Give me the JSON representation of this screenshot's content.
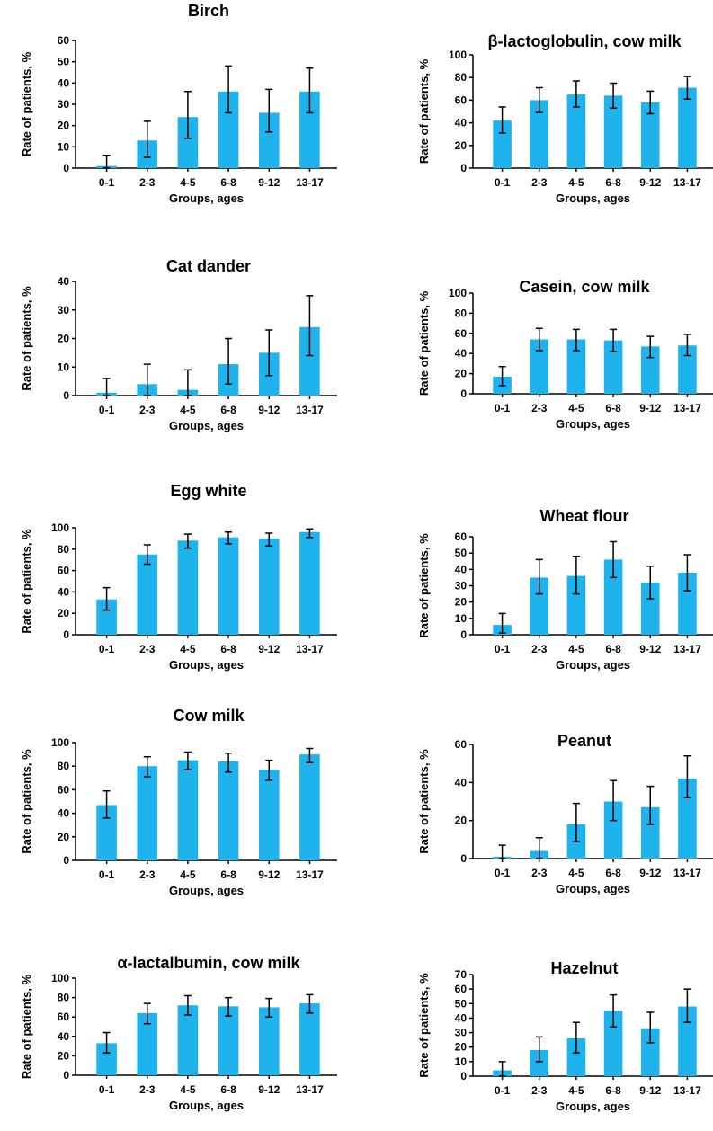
{
  "colors": {
    "bar": "#1fb3ee",
    "axis": "#000000"
  },
  "chart_data": [
    {
      "type": "bar",
      "title": "Birch",
      "xlabel": "Groups, ages",
      "ylabel": "Rate of patients, %",
      "categories": [
        "0-1",
        "2-3",
        "4-5",
        "6-8",
        "9-12",
        "13-17"
      ],
      "values": [
        1,
        13,
        24,
        36,
        26,
        36
      ],
      "error": [
        [
          0,
          6
        ],
        [
          5,
          22
        ],
        [
          14,
          36
        ],
        [
          26,
          48
        ],
        [
          17,
          37
        ],
        [
          26,
          47
        ]
      ],
      "ylim": [
        0,
        60
      ],
      "yticks": [
        0,
        10,
        20,
        30,
        40,
        50,
        60
      ],
      "grid": false
    },
    {
      "type": "bar",
      "title": "β-lactoglobulin, cow milk",
      "xlabel": "Groups, ages",
      "ylabel": "Rate of patients, %",
      "categories": [
        "0-1",
        "2-3",
        "4-5",
        "6-8",
        "9-12",
        "13-17"
      ],
      "values": [
        42,
        60,
        65,
        64,
        58,
        71
      ],
      "error": [
        [
          31,
          54
        ],
        [
          49,
          71
        ],
        [
          54,
          77
        ],
        [
          53,
          75
        ],
        [
          48,
          68
        ],
        [
          61,
          81
        ]
      ],
      "ylim": [
        0,
        100
      ],
      "yticks": [
        0,
        20,
        40,
        60,
        80,
        100
      ],
      "grid": false
    },
    {
      "type": "bar",
      "title": "Cat dander",
      "xlabel": "Groups, ages",
      "ylabel": "Rate of patients, %",
      "categories": [
        "0-1",
        "2-3",
        "4-5",
        "6-8",
        "9-12",
        "13-17"
      ],
      "values": [
        1,
        4,
        2,
        11,
        15,
        24
      ],
      "error": [
        [
          0,
          6
        ],
        [
          0,
          11
        ],
        [
          0,
          9
        ],
        [
          4,
          20
        ],
        [
          7,
          23
        ],
        [
          14,
          35
        ]
      ],
      "ylim": [
        0,
        40
      ],
      "yticks": [
        0,
        10,
        20,
        30,
        40
      ],
      "grid": false
    },
    {
      "type": "bar",
      "title": "Casein, cow milk",
      "xlabel": "Groups, ages",
      "ylabel": "Rate of patients, %",
      "categories": [
        "0-1",
        "2-3",
        "4-5",
        "6-8",
        "9-12",
        "13-17"
      ],
      "values": [
        17,
        54,
        54,
        53,
        47,
        48
      ],
      "error": [
        [
          8,
          27
        ],
        [
          43,
          65
        ],
        [
          43,
          64
        ],
        [
          42,
          64
        ],
        [
          36,
          57
        ],
        [
          38,
          59
        ]
      ],
      "ylim": [
        0,
        100
      ],
      "yticks": [
        0,
        20,
        40,
        60,
        80,
        100
      ],
      "grid": false
    },
    {
      "type": "bar",
      "title": "Egg white",
      "xlabel": "Groups, ages",
      "ylabel": "Rate of patients, %",
      "categories": [
        "0-1",
        "2-3",
        "4-5",
        "6-8",
        "9-12",
        "13-17"
      ],
      "values": [
        33,
        75,
        88,
        91,
        90,
        96
      ],
      "error": [
        [
          23,
          44
        ],
        [
          66,
          84
        ],
        [
          81,
          94
        ],
        [
          85,
          96
        ],
        [
          83,
          95
        ],
        [
          91,
          99
        ]
      ],
      "ylim": [
        0,
        100
      ],
      "yticks": [
        0,
        20,
        40,
        60,
        80,
        100
      ],
      "grid": false
    },
    {
      "type": "bar",
      "title": "Wheat flour",
      "xlabel": "Groups, ages",
      "ylabel": "Rate of patients, %",
      "categories": [
        "0-1",
        "2-3",
        "4-5",
        "6-8",
        "9-12",
        "13-17"
      ],
      "values": [
        6,
        35,
        36,
        46,
        32,
        38
      ],
      "error": [
        [
          1,
          13
        ],
        [
          25,
          46
        ],
        [
          25,
          48
        ],
        [
          35,
          57
        ],
        [
          22,
          42
        ],
        [
          27,
          49
        ]
      ],
      "ylim": [
        0,
        60
      ],
      "yticks": [
        0,
        10,
        20,
        30,
        40,
        50,
        60
      ],
      "grid": false
    },
    {
      "type": "bar",
      "title": "Cow milk",
      "xlabel": "Groups, ages",
      "ylabel": "Rate of patients, %",
      "categories": [
        "0-1",
        "2-3",
        "4-5",
        "6-8",
        "9-12",
        "13-17"
      ],
      "values": [
        47,
        80,
        85,
        84,
        77,
        90
      ],
      "error": [
        [
          36,
          59
        ],
        [
          71,
          88
        ],
        [
          77,
          92
        ],
        [
          75,
          91
        ],
        [
          68,
          85
        ],
        [
          83,
          95
        ]
      ],
      "ylim": [
        0,
        100
      ],
      "yticks": [
        0,
        20,
        40,
        60,
        80,
        100
      ],
      "grid": false
    },
    {
      "type": "bar",
      "title": "Peanut",
      "xlabel": "Groups, ages",
      "ylabel": "Rate of patients, %",
      "categories": [
        "0-1",
        "2-3",
        "4-5",
        "6-8",
        "9-12",
        "13-17"
      ],
      "values": [
        1,
        4,
        18,
        30,
        27,
        42
      ],
      "error": [
        [
          0,
          7
        ],
        [
          0,
          11
        ],
        [
          9,
          29
        ],
        [
          20,
          41
        ],
        [
          18,
          38
        ],
        [
          32,
          54
        ]
      ],
      "ylim": [
        0,
        60
      ],
      "yticks": [
        0,
        20,
        40,
        60
      ],
      "grid": false
    },
    {
      "type": "bar",
      "title": "α-lactalbumin, cow milk",
      "xlabel": "Groups, ages",
      "ylabel": "Rate of patients, %",
      "categories": [
        "0-1",
        "2-3",
        "4-5",
        "6-8",
        "9-12",
        "13-17"
      ],
      "values": [
        33,
        64,
        72,
        71,
        70,
        74
      ],
      "error": [
        [
          23,
          44
        ],
        [
          53,
          74
        ],
        [
          62,
          82
        ],
        [
          61,
          80
        ],
        [
          60,
          79
        ],
        [
          64,
          83
        ]
      ],
      "ylim": [
        0,
        100
      ],
      "yticks": [
        0,
        20,
        40,
        60,
        80,
        100
      ],
      "grid": false
    },
    {
      "type": "bar",
      "title": "Hazelnut",
      "xlabel": "Groups, ages",
      "ylabel": "Rate of patients, %",
      "categories": [
        "0-1",
        "2-3",
        "4-5",
        "6-8",
        "9-12",
        "13-17"
      ],
      "values": [
        4,
        18,
        26,
        45,
        33,
        48
      ],
      "error": [
        [
          0,
          10
        ],
        [
          10,
          27
        ],
        [
          16,
          37
        ],
        [
          34,
          56
        ],
        [
          23,
          44
        ],
        [
          37,
          60
        ]
      ],
      "ylim": [
        0,
        70
      ],
      "yticks": [
        0,
        10,
        20,
        30,
        40,
        50,
        60,
        70
      ],
      "grid": false
    }
  ]
}
